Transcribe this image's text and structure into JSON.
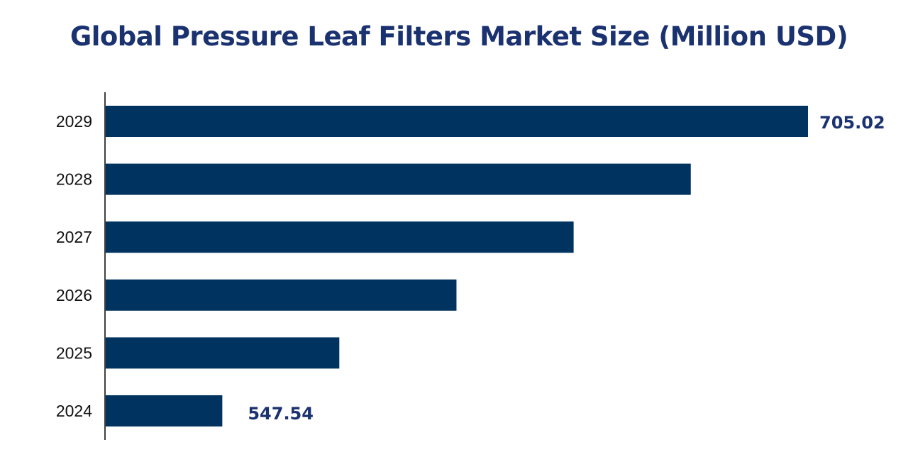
{
  "chart_data": {
    "type": "bar",
    "orientation": "horizontal",
    "title": "Global Pressure Leaf Filters Market Size (Million USD)",
    "categories": [
      "2024",
      "2025",
      "2026",
      "2027",
      "2028",
      "2029"
    ],
    "values": [
      547.54,
      579.0,
      610.5,
      642.0,
      673.5,
      705.02
    ],
    "data_labels": {
      "2024": "547.54",
      "2029": "705.02"
    },
    "xlabel": "",
    "ylabel": "",
    "xlim": [
      516,
      705.02
    ],
    "grid": false,
    "legend": "none",
    "colors": {
      "bar": "#003360",
      "title": "#1b3270",
      "label": "#1b3270"
    }
  }
}
